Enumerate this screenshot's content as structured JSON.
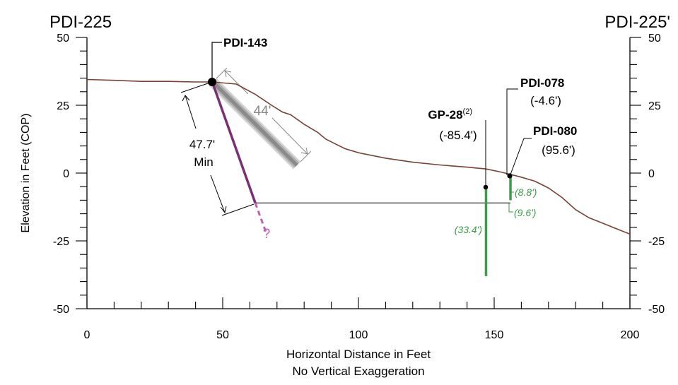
{
  "section": {
    "start_label": "PDI-225",
    "end_label": "PDI-225'"
  },
  "axes": {
    "xlabel": "Horizontal Distance in Feet",
    "xlabel_note": "No Vertical Exaggeration",
    "ylabel": "Elevation in Feet (COP)",
    "x_ticks": [
      "0",
      "50",
      "100",
      "150",
      "200"
    ],
    "y_ticks_left": [
      "50",
      "25",
      "0",
      "-25",
      "-50"
    ],
    "y_ticks_right": [
      "50",
      "25",
      "0",
      "-25",
      "-50"
    ],
    "xlim": [
      0,
      200
    ],
    "ylim": [
      -50,
      50
    ]
  },
  "borings": {
    "pdi143": {
      "name": "PDI-143",
      "length": "44'",
      "depth_text": "47.7'",
      "depth_qualifier": "Min",
      "unknown": "?"
    },
    "gp28": {
      "name": "GP-28",
      "superscript": "(2)",
      "offset": "(-85.4')",
      "depth": "(33.4')"
    },
    "pdi078": {
      "name": "PDI-078",
      "offset": "(-4.6')",
      "depth": "(8.8')"
    },
    "pdi080": {
      "name": "PDI-080",
      "offset": "(95.6')",
      "depth": "(9.6')"
    }
  },
  "colors": {
    "ground": "#7a4233",
    "angled_boring": "#7b2f74",
    "unknown_extension": "#c25fb1",
    "vertical_boring": "#3a9d48",
    "projection": "#a8a8a8"
  },
  "chart_data": {
    "type": "line",
    "series": [],
    "ground_surface": {
      "x": [
        0,
        10,
        20,
        30,
        40,
        46,
        55,
        62,
        68,
        72,
        75,
        80,
        85,
        88,
        90,
        95,
        100,
        110,
        120,
        130,
        140,
        147,
        152,
        156,
        160,
        165,
        170,
        175,
        180,
        185,
        190,
        195,
        200
      ],
      "y": [
        34.5,
        34.2,
        33.8,
        33.8,
        33.6,
        33.6,
        32.8,
        29,
        25,
        22.5,
        21.5,
        18,
        15,
        12.5,
        11.5,
        9,
        7.5,
        5.5,
        4,
        3,
        2.2,
        1.5,
        0.5,
        -0.5,
        -1.5,
        -3,
        -5.5,
        -9,
        -13.5,
        -16.5,
        -18.5,
        -20.5,
        -22.5
      ]
    },
    "borings": [
      {
        "name": "PDI-143",
        "kind": "angled",
        "top": [
          46,
          34
        ],
        "bottom": [
          62,
          -11
        ],
        "extension_to": [
          66,
          -22
        ]
      },
      {
        "name": "GP-28",
        "kind": "vertical",
        "x": 147,
        "top": -5,
        "bottom": -38
      },
      {
        "name": "PDI-078",
        "kind": "vertical",
        "x": 156,
        "top": -1,
        "bottom": -10
      },
      {
        "name": "PDI-080",
        "kind": "vertical",
        "x": 155.5,
        "top": -1.5,
        "bottom": -10.5
      }
    ],
    "reference_line": {
      "y": -11,
      "x_from": 62,
      "x_to": 156
    }
  }
}
